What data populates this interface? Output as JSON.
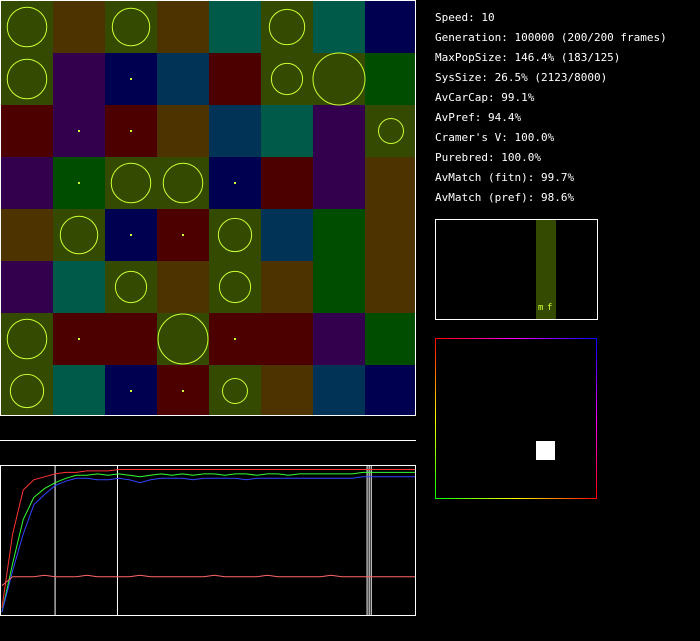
{
  "stats": [
    "Speed: 10",
    "Generation: 100000 (200/200 frames)",
    "MaxPopSize: 146.4% (183/125)",
    "SysSize: 26.5% (2123/8000)",
    "AvCarCap: 99.1%",
    "AvPref: 94.4%",
    "Cramer's V: 100.0%",
    "Purebred: 100.0%",
    "AvMatch (fitn): 99.7%",
    "AvMatch (pref): 98.6%"
  ],
  "histogram": {
    "labels": [
      "m",
      "f"
    ],
    "bar_level": 1.0,
    "bar_color": "#334a00"
  },
  "grid": {
    "rows": 8,
    "cols": 8,
    "colors": {
      "O": "#334a00",
      "B": "#4d3300",
      "T": "#005a4a",
      "N": "#000050",
      "P": "#33004d",
      "G": "#004d00",
      "R": "#4d0000",
      "S": "#003355",
      "C": "#ccff33"
    },
    "cells": [
      [
        "O",
        "B",
        "O",
        "B",
        "T",
        "O",
        "T",
        "N"
      ],
      [
        "O",
        "P",
        "N",
        "S",
        "R",
        "O",
        "O",
        "G"
      ],
      [
        "R",
        "P",
        "R",
        "B",
        "S",
        "T",
        "P",
        "O"
      ],
      [
        "P",
        "G",
        "O",
        "O",
        "N",
        "R",
        "P",
        "B"
      ],
      [
        "B",
        "O",
        "N",
        "R",
        "O",
        "S",
        "G",
        "B"
      ],
      [
        "P",
        "T",
        "O",
        "B",
        "O",
        "B",
        "G",
        "B"
      ],
      [
        "O",
        "R",
        "R",
        "O",
        "R",
        "R",
        "P",
        "G"
      ],
      [
        "O",
        "T",
        "N",
        "R",
        "O",
        "B",
        "S",
        "N"
      ]
    ],
    "circles": [
      [
        0,
        0,
        0.38
      ],
      [
        0,
        2,
        0.36
      ],
      [
        0,
        5,
        0.34
      ],
      [
        1,
        0,
        0.38
      ],
      [
        1,
        2,
        0.02
      ],
      [
        1,
        5,
        0.3
      ],
      [
        1,
        6,
        0.5
      ],
      [
        2,
        1,
        0.02
      ],
      [
        2,
        2,
        0.02
      ],
      [
        2,
        7,
        0.24
      ],
      [
        3,
        1,
        0.02
      ],
      [
        3,
        2,
        0.38
      ],
      [
        3,
        3,
        0.38
      ],
      [
        3,
        4,
        0.02
      ],
      [
        4,
        1,
        0.36
      ],
      [
        4,
        2,
        0.02
      ],
      [
        4,
        3,
        0.02
      ],
      [
        4,
        4,
        0.32
      ],
      [
        5,
        2,
        0.3
      ],
      [
        5,
        4,
        0.3
      ],
      [
        6,
        0,
        0.38
      ],
      [
        6,
        1,
        0.02
      ],
      [
        6,
        3,
        0.48
      ],
      [
        6,
        4,
        0.02
      ],
      [
        7,
        0,
        0.32
      ],
      [
        7,
        2,
        0.02
      ],
      [
        7,
        3,
        0.02
      ],
      [
        7,
        4,
        0.24
      ]
    ]
  },
  "history": {
    "x_max": 100000,
    "markers": [
      13000,
      28000,
      88000,
      88500,
      89000
    ],
    "series": [
      {
        "color": "#ff3333",
        "values": [
          0.05,
          0.55,
          0.85,
          0.92,
          0.94,
          0.96,
          0.97,
          0.97,
          0.98,
          0.98,
          0.98,
          0.99,
          0.99,
          0.99,
          0.99,
          0.99,
          0.99,
          0.99,
          0.99,
          0.99,
          0.99,
          0.99,
          0.99,
          0.99,
          0.99,
          0.99,
          0.99,
          0.99,
          0.99,
          0.99,
          0.99,
          0.99,
          0.99,
          0.99,
          0.99,
          0.99,
          0.99,
          0.99,
          0.99,
          0.99
        ]
      },
      {
        "color": "#33ff33",
        "values": [
          0.02,
          0.35,
          0.65,
          0.8,
          0.86,
          0.9,
          0.93,
          0.95,
          0.95,
          0.96,
          0.95,
          0.96,
          0.95,
          0.94,
          0.95,
          0.96,
          0.95,
          0.96,
          0.95,
          0.96,
          0.96,
          0.95,
          0.96,
          0.96,
          0.95,
          0.96,
          0.96,
          0.95,
          0.96,
          0.96,
          0.96,
          0.96,
          0.96,
          0.96,
          0.97,
          0.97,
          0.97,
          0.97,
          0.97,
          0.97
        ]
      },
      {
        "color": "#3344ff",
        "values": [
          0.02,
          0.3,
          0.55,
          0.75,
          0.82,
          0.88,
          0.91,
          0.93,
          0.93,
          0.92,
          0.92,
          0.93,
          0.92,
          0.9,
          0.92,
          0.93,
          0.93,
          0.93,
          0.92,
          0.93,
          0.93,
          0.93,
          0.93,
          0.92,
          0.93,
          0.93,
          0.93,
          0.93,
          0.93,
          0.93,
          0.93,
          0.93,
          0.93,
          0.93,
          0.94,
          0.94,
          0.94,
          0.94,
          0.94,
          0.94
        ]
      },
      {
        "color": "#ff6666",
        "values": [
          0.2,
          0.26,
          0.26,
          0.26,
          0.27,
          0.26,
          0.26,
          0.26,
          0.27,
          0.26,
          0.26,
          0.26,
          0.26,
          0.27,
          0.26,
          0.26,
          0.26,
          0.26,
          0.26,
          0.26,
          0.27,
          0.26,
          0.26,
          0.26,
          0.26,
          0.27,
          0.26,
          0.26,
          0.26,
          0.26,
          0.26,
          0.27,
          0.26,
          0.26,
          0.26,
          0.26,
          0.26,
          0.26,
          0.26,
          0.26
        ]
      }
    ]
  }
}
